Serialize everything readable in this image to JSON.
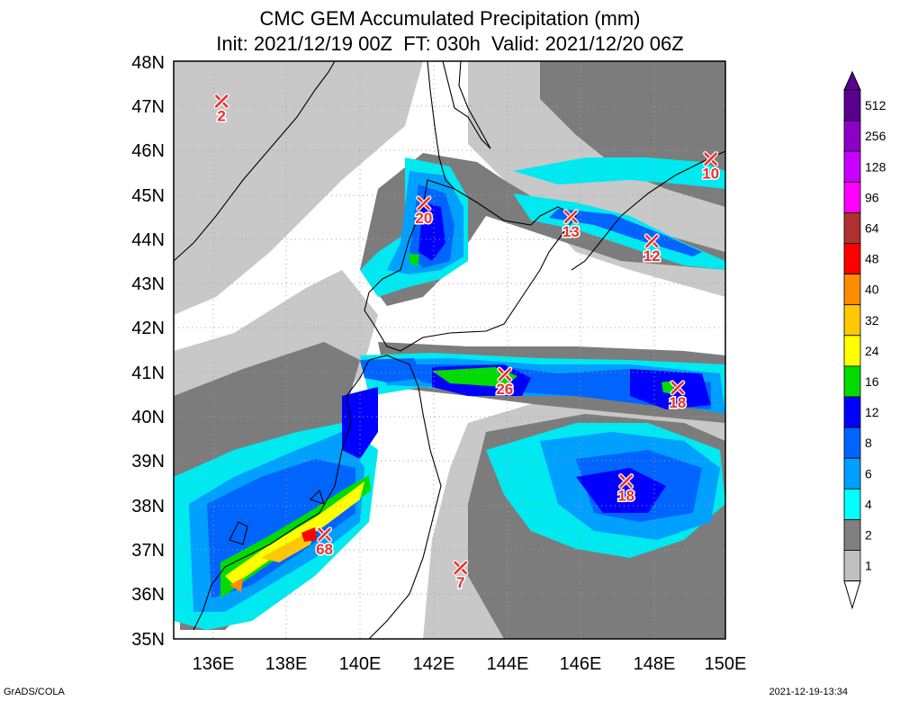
{
  "header": {
    "title": "CMC GEM Accumulated Precipitation (mm)",
    "subtitle": "Init: 2021/12/19 00Z  FT: 030h  Valid: 2021/12/20 06Z"
  },
  "axes": {
    "lat_labels": [
      "48N",
      "47N",
      "46N",
      "45N",
      "44N",
      "43N",
      "42N",
      "41N",
      "40N",
      "39N",
      "38N",
      "37N",
      "36N",
      "35N"
    ],
    "lon_labels": [
      "136E",
      "138E",
      "140E",
      "142E",
      "144E",
      "146E",
      "148E",
      "150E"
    ]
  },
  "legend": {
    "levels": [
      "512",
      "256",
      "128",
      "96",
      "64",
      "48",
      "40",
      "32",
      "24",
      "16",
      "12",
      "8",
      "6",
      "4",
      "2",
      "1"
    ],
    "colors": [
      "#5a0090",
      "#8c00c8",
      "#c800ff",
      "#ff00ff",
      "#b03030",
      "#ff0000",
      "#ff8c00",
      "#ffc800",
      "#ffff00",
      "#00dc00",
      "#0000ff",
      "#0064ff",
      "#00a0ff",
      "#00ffff",
      "#808080",
      "#c0c0c0"
    ]
  },
  "markers": [
    {
      "label": "2",
      "lon": 136.3,
      "lat": 47.1
    },
    {
      "label": "20",
      "lon": 141.8,
      "lat": 44.8
    },
    {
      "label": "10",
      "lon": 149.6,
      "lat": 45.8
    },
    {
      "label": "13",
      "lon": 145.8,
      "lat": 44.5
    },
    {
      "label": "12",
      "lon": 148.0,
      "lat": 43.95
    },
    {
      "label": "26",
      "lon": 144.0,
      "lat": 40.95
    },
    {
      "label": "18",
      "lon": 148.7,
      "lat": 40.65
    },
    {
      "label": "18",
      "lon": 147.3,
      "lat": 38.55
    },
    {
      "label": "68",
      "lon": 139.1,
      "lat": 37.35
    },
    {
      "label": "7",
      "lon": 142.8,
      "lat": 36.6
    }
  ],
  "footer": {
    "left": "GrADS/COLA",
    "right": "2021-12-19-13:34"
  }
}
